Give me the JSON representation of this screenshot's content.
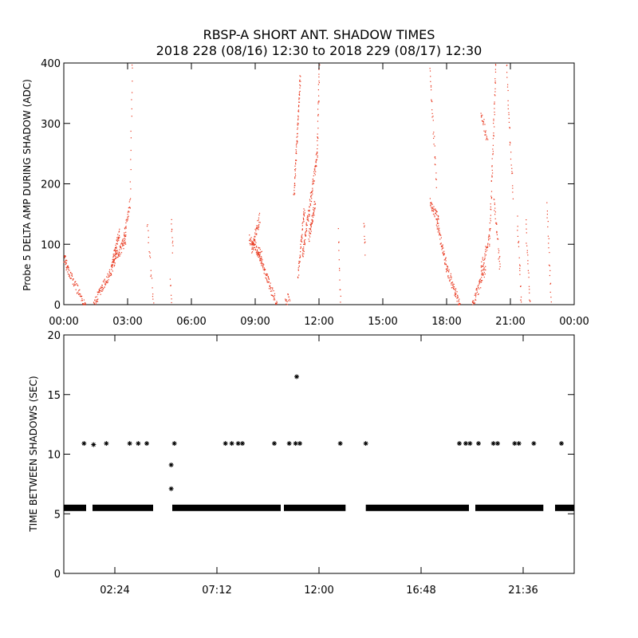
{
  "title_line1": "RBSP-A SHORT ANT. SHADOW TIMES",
  "title_line2": "2018 228 (08/16) 12:30 to 2018 229 (08/17) 12:30",
  "chart_data": [
    {
      "type": "scatter",
      "name": "delta-amp",
      "color": "#e8361c",
      "ylabel": "Probe 5 DELTA AMP DURING SHADOW (ADC)",
      "xlabel": "",
      "xlim": [
        0,
        24
      ],
      "ylim": [
        0,
        400
      ],
      "xticks": [
        0,
        3,
        6,
        9,
        12,
        15,
        18,
        21,
        24
      ],
      "xtick_labels": [
        "00:00",
        "03:00",
        "06:00",
        "09:00",
        "12:00",
        "15:00",
        "18:00",
        "21:00",
        "00:00"
      ],
      "yticks": [
        0,
        100,
        200,
        300,
        400
      ],
      "ytick_labels": [
        "0",
        "100",
        "200",
        "300",
        "400"
      ],
      "segments": [
        {
          "x0": 0.0,
          "x1": 0.2,
          "y0": 80,
          "y1": 55,
          "mid": 0,
          "n": 30
        },
        {
          "x0": 0.2,
          "x1": 1.0,
          "y0": 55,
          "y1": 0,
          "mid": 0,
          "n": 60
        },
        {
          "x0": 1.4,
          "x1": 2.2,
          "y0": 2,
          "y1": 55,
          "mid": 0,
          "n": 70
        },
        {
          "x0": 2.2,
          "x1": 2.6,
          "y0": 55,
          "y1": 120,
          "mid": 0,
          "n": 60
        },
        {
          "x0": 2.3,
          "x1": 2.9,
          "y0": 70,
          "y1": 110,
          "mid": 0,
          "n": 70
        },
        {
          "x0": 2.8,
          "x1": 3.1,
          "y0": 110,
          "y1": 170,
          "mid": 0,
          "n": 30
        },
        {
          "x0": 3.1,
          "x1": 3.2,
          "y0": 180,
          "y1": 400,
          "mid": 0,
          "n": 15
        },
        {
          "x0": 3.9,
          "x1": 4.2,
          "y0": 135,
          "y1": 0,
          "mid": 0,
          "n": 18
        },
        {
          "x0": 5.0,
          "x1": 5.05,
          "y0": 40,
          "y1": 0,
          "mid": 0,
          "n": 6
        },
        {
          "x0": 5.05,
          "x1": 5.1,
          "y0": 140,
          "y1": 90,
          "mid": 0,
          "n": 10
        },
        {
          "x0": 8.7,
          "x1": 9.3,
          "y0": 110,
          "y1": 80,
          "mid": 0,
          "n": 60
        },
        {
          "x0": 8.8,
          "x1": 9.2,
          "y0": 90,
          "y1": 145,
          "mid": 0,
          "n": 45
        },
        {
          "x0": 9.1,
          "x1": 9.6,
          "y0": 90,
          "y1": 40,
          "mid": 0,
          "n": 50
        },
        {
          "x0": 9.6,
          "x1": 10.0,
          "y0": 40,
          "y1": 0,
          "mid": 0,
          "n": 35
        },
        {
          "x0": 10.4,
          "x1": 10.6,
          "y0": 5,
          "y1": 15,
          "mid": 0,
          "n": 15
        },
        {
          "x0": 10.8,
          "x1": 11.1,
          "y0": 180,
          "y1": 380,
          "mid": 0,
          "n": 80
        },
        {
          "x0": 11.0,
          "x1": 11.3,
          "y0": 50,
          "y1": 160,
          "mid": 0,
          "n": 50
        },
        {
          "x0": 11.2,
          "x1": 11.9,
          "y0": 80,
          "y1": 250,
          "mid": 0,
          "n": 110
        },
        {
          "x0": 11.5,
          "x1": 11.8,
          "y0": 110,
          "y1": 170,
          "mid": 0,
          "n": 50
        },
        {
          "x0": 11.9,
          "x1": 12.0,
          "y0": 250,
          "y1": 400,
          "mid": 0,
          "n": 30
        },
        {
          "x0": 12.9,
          "x1": 13.0,
          "y0": 120,
          "y1": 0,
          "mid": 0,
          "n": 12
        },
        {
          "x0": 14.1,
          "x1": 14.15,
          "y0": 140,
          "y1": 90,
          "mid": 0,
          "n": 8
        },
        {
          "x0": 17.2,
          "x1": 17.6,
          "y0": 170,
          "y1": 140,
          "mid": 0,
          "n": 40
        },
        {
          "x0": 17.2,
          "x1": 17.5,
          "y0": 390,
          "y1": 200,
          "mid": 0,
          "n": 30
        },
        {
          "x0": 17.5,
          "x1": 18.0,
          "y0": 140,
          "y1": 60,
          "mid": 0,
          "n": 60
        },
        {
          "x0": 18.0,
          "x1": 18.6,
          "y0": 60,
          "y1": 0,
          "mid": 0,
          "n": 60
        },
        {
          "x0": 19.2,
          "x1": 19.8,
          "y0": 0,
          "y1": 60,
          "mid": 0,
          "n": 60
        },
        {
          "x0": 19.6,
          "x1": 20.0,
          "y0": 60,
          "y1": 110,
          "mid": 0,
          "n": 40
        },
        {
          "x0": 19.6,
          "x1": 19.9,
          "y0": 320,
          "y1": 270,
          "mid": 0,
          "n": 25
        },
        {
          "x0": 20.0,
          "x1": 20.3,
          "y0": 100,
          "y1": 400,
          "mid": 0,
          "n": 60
        },
        {
          "x0": 20.2,
          "x1": 20.5,
          "y0": 180,
          "y1": 60,
          "mid": 0,
          "n": 30
        },
        {
          "x0": 20.8,
          "x1": 21.1,
          "y0": 400,
          "y1": 180,
          "mid": 0,
          "n": 30
        },
        {
          "x0": 21.3,
          "x1": 21.5,
          "y0": 140,
          "y1": 0,
          "mid": 0,
          "n": 20
        },
        {
          "x0": 21.7,
          "x1": 21.9,
          "y0": 140,
          "y1": 0,
          "mid": 0,
          "n": 20
        },
        {
          "x0": 22.7,
          "x1": 22.9,
          "y0": 170,
          "y1": 0,
          "mid": 0,
          "n": 20
        }
      ]
    },
    {
      "type": "scatter",
      "name": "time-between-shadows",
      "color": "#000000",
      "marker": "*",
      "ylabel": "TIME BETWEEN SHADOWS (SEC)",
      "xlabel": "",
      "xlim": [
        0,
        24
      ],
      "ylim": [
        0,
        20
      ],
      "xticks": [
        2.4,
        7.2,
        12.0,
        16.8,
        21.6
      ],
      "xtick_labels": [
        "02:24",
        "07:12",
        "12:00",
        "16:48",
        "21:36"
      ],
      "yticks": [
        0,
        5,
        10,
        15,
        20
      ],
      "ytick_labels": [
        "0",
        "5",
        "10",
        "15",
        "20"
      ],
      "baseline_value": 5.5,
      "baseline_ranges": [
        [
          0.0,
          1.05
        ],
        [
          1.35,
          4.2
        ],
        [
          5.1,
          10.2
        ],
        [
          10.35,
          13.25
        ],
        [
          14.2,
          19.05
        ],
        [
          19.35,
          22.55
        ],
        [
          23.1,
          24.0
        ]
      ],
      "points": [
        {
          "x": 0.95,
          "y": 10.9
        },
        {
          "x": 1.4,
          "y": 10.8
        },
        {
          "x": 2.0,
          "y": 10.9
        },
        {
          "x": 3.1,
          "y": 10.9
        },
        {
          "x": 3.5,
          "y": 10.9
        },
        {
          "x": 3.9,
          "y": 10.9
        },
        {
          "x": 5.05,
          "y": 7.1
        },
        {
          "x": 5.05,
          "y": 9.1
        },
        {
          "x": 5.2,
          "y": 10.9
        },
        {
          "x": 7.6,
          "y": 10.9
        },
        {
          "x": 7.9,
          "y": 10.9
        },
        {
          "x": 8.2,
          "y": 10.9
        },
        {
          "x": 8.4,
          "y": 10.9
        },
        {
          "x": 9.9,
          "y": 10.9
        },
        {
          "x": 10.6,
          "y": 10.9
        },
        {
          "x": 10.9,
          "y": 10.9
        },
        {
          "x": 10.95,
          "y": 16.5
        },
        {
          "x": 11.1,
          "y": 10.9
        },
        {
          "x": 13.0,
          "y": 10.9
        },
        {
          "x": 14.2,
          "y": 10.9
        },
        {
          "x": 18.6,
          "y": 10.9
        },
        {
          "x": 18.9,
          "y": 10.9
        },
        {
          "x": 19.1,
          "y": 10.9
        },
        {
          "x": 19.5,
          "y": 10.9
        },
        {
          "x": 20.2,
          "y": 10.9
        },
        {
          "x": 20.4,
          "y": 10.9
        },
        {
          "x": 21.2,
          "y": 10.9
        },
        {
          "x": 21.4,
          "y": 10.9
        },
        {
          "x": 22.1,
          "y": 10.9
        },
        {
          "x": 23.4,
          "y": 10.9
        }
      ]
    }
  ]
}
